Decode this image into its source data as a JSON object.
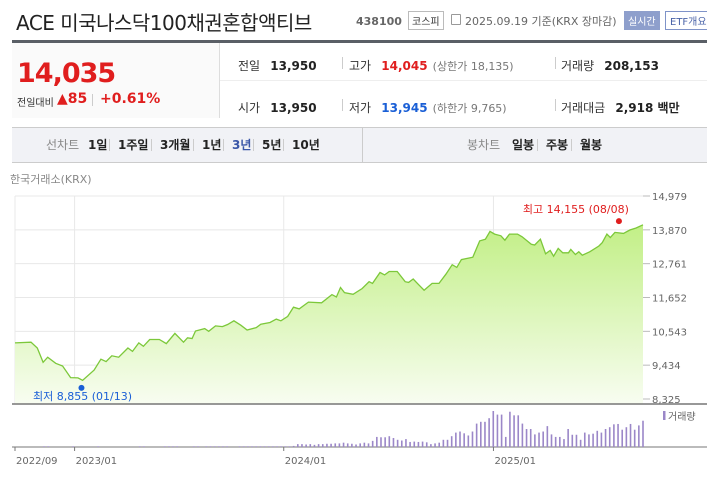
{
  "header": {
    "title": "ACE 미국나스닥100채권혼합액티브",
    "code": "438100",
    "market": "코스피",
    "date_icon": "calendar-clock-icon",
    "date": "2025.09.19 기준(KRX 장마감)",
    "realtime_button": "실시간",
    "etf_button": "ETF개요"
  },
  "quote": {
    "price": "14,035",
    "change_label": "전일대비",
    "change": "85",
    "change_pct": "+0.61%",
    "up_color": "#e01e1e",
    "down_color": "#1a5fd6",
    "stats": [
      {
        "label": "전일",
        "value": "13,950"
      },
      {
        "label": "고가",
        "value": "14,045",
        "sub": "(상한가 18,135)"
      },
      {
        "label": "거래량",
        "value": "208,153"
      },
      {
        "label": "시가",
        "value": "13,950"
      },
      {
        "label": "저가",
        "value": "13,945",
        "sub": "(하한가 9,765)"
      },
      {
        "label": "거래대금",
        "value": "2,918 백만"
      }
    ]
  },
  "periods": {
    "line_label": "선차트",
    "line_items": [
      "1일",
      "1주일",
      "3개월",
      "1년",
      "3년",
      "5년",
      "10년"
    ],
    "selected": "3년",
    "candle_label": "봉차트",
    "candle_items": [
      "일봉",
      "주봉",
      "월봉"
    ]
  },
  "source": "한국거래소(KRX)",
  "chart_data": {
    "type": "area",
    "ylim": [
      8325,
      14979
    ],
    "yticks": [
      "14,979",
      "13,870",
      "12,761",
      "11,652",
      "10,543",
      "9,434",
      "8,325"
    ],
    "xlim": [
      "2022-09-19",
      "2025-09-19"
    ],
    "xticks": [
      {
        "date": "2022-09-19",
        "label": "2022/09"
      },
      {
        "date": "2023-01-01",
        "label": "2023/01"
      },
      {
        "date": "2024-01-01",
        "label": "2024/01"
      },
      {
        "date": "2025-01-01",
        "label": "2025/01"
      }
    ],
    "line_color": "#7cc83a",
    "volume_color": "#9b87c8",
    "volume_legend": "거래량",
    "high": {
      "label": "최고 14,155 (08/08)",
      "date": "2025-08-08",
      "value": 14155
    },
    "low": {
      "label": "최저 8,855 (01/13)",
      "date": "2023-01-13",
      "value": 8855
    },
    "points": [
      [
        "2022-09-19",
        10164
      ],
      [
        "2022-10-17",
        10186
      ],
      [
        "2022-10-28",
        9997
      ],
      [
        "2022-11-07",
        9529
      ],
      [
        "2022-11-15",
        9696
      ],
      [
        "2022-11-29",
        9495
      ],
      [
        "2022-12-11",
        9406
      ],
      [
        "2022-12-25",
        9027
      ],
      [
        "2023-01-07",
        9016
      ],
      [
        "2023-01-15",
        8938
      ],
      [
        "2023-02-04",
        9272
      ],
      [
        "2023-02-16",
        9629
      ],
      [
        "2023-02-25",
        9550
      ],
      [
        "2023-03-07",
        9740
      ],
      [
        "2023-03-19",
        9696
      ],
      [
        "2023-04-04",
        9997
      ],
      [
        "2023-04-12",
        9885
      ],
      [
        "2023-04-23",
        10164
      ],
      [
        "2023-05-01",
        10053
      ],
      [
        "2023-05-12",
        10276
      ],
      [
        "2023-05-29",
        10276
      ],
      [
        "2023-06-10",
        10142
      ],
      [
        "2023-06-25",
        10476
      ],
      [
        "2023-07-10",
        10186
      ],
      [
        "2023-07-17",
        10331
      ],
      [
        "2023-07-25",
        10309
      ],
      [
        "2023-07-31",
        10554
      ],
      [
        "2023-08-16",
        10632
      ],
      [
        "2023-08-23",
        10543
      ],
      [
        "2023-09-04",
        10721
      ],
      [
        "2023-09-16",
        10699
      ],
      [
        "2023-09-25",
        10766
      ],
      [
        "2023-10-06",
        10888
      ],
      [
        "2023-10-18",
        10744
      ],
      [
        "2023-10-29",
        10588
      ],
      [
        "2023-11-14",
        10666
      ],
      [
        "2023-11-22",
        10777
      ],
      [
        "2023-12-08",
        10833
      ],
      [
        "2023-12-19",
        10944
      ],
      [
        "2023-12-27",
        10888
      ],
      [
        "2024-01-08",
        11033
      ],
      [
        "2024-01-18",
        11334
      ],
      [
        "2024-01-28",
        11279
      ],
      [
        "2024-02-13",
        11502
      ],
      [
        "2024-03-07",
        11479
      ],
      [
        "2024-03-25",
        11747
      ],
      [
        "2024-04-02",
        11669
      ],
      [
        "2024-04-09",
        11981
      ],
      [
        "2024-04-16",
        11814
      ],
      [
        "2024-05-01",
        11758
      ],
      [
        "2024-05-17",
        11947
      ],
      [
        "2024-05-29",
        12170
      ],
      [
        "2024-06-04",
        12114
      ],
      [
        "2024-06-17",
        12471
      ],
      [
        "2024-06-25",
        12393
      ],
      [
        "2024-07-03",
        12505
      ],
      [
        "2024-07-17",
        12505
      ],
      [
        "2024-07-31",
        12170
      ],
      [
        "2024-08-06",
        12148
      ],
      [
        "2024-08-14",
        12259
      ],
      [
        "2024-08-23",
        12081
      ],
      [
        "2024-09-02",
        11892
      ],
      [
        "2024-09-16",
        12114
      ],
      [
        "2024-09-28",
        12114
      ],
      [
        "2024-10-10",
        12415
      ],
      [
        "2024-10-21",
        12727
      ],
      [
        "2024-10-29",
        12638
      ],
      [
        "2024-11-06",
        12895
      ],
      [
        "2024-11-26",
        12973
      ],
      [
        "2024-12-08",
        13508
      ],
      [
        "2024-12-18",
        13564
      ],
      [
        "2024-12-26",
        13820
      ],
      [
        "2025-01-03",
        13731
      ],
      [
        "2025-01-14",
        13675
      ],
      [
        "2025-01-21",
        13530
      ],
      [
        "2025-01-29",
        13731
      ],
      [
        "2025-02-12",
        13731
      ],
      [
        "2025-02-20",
        13642
      ],
      [
        "2025-03-08",
        13396
      ],
      [
        "2025-03-14",
        13374
      ],
      [
        "2025-03-24",
        13564
      ],
      [
        "2025-04-02",
        13084
      ],
      [
        "2025-04-10",
        13196
      ],
      [
        "2025-04-16",
        13006
      ],
      [
        "2025-04-24",
        13263
      ],
      [
        "2025-05-02",
        13118
      ],
      [
        "2025-05-12",
        13118
      ],
      [
        "2025-05-16",
        13229
      ],
      [
        "2025-05-24",
        13062
      ],
      [
        "2025-05-30",
        13151
      ],
      [
        "2025-06-05",
        13040
      ],
      [
        "2025-06-18",
        13151
      ],
      [
        "2025-07-04",
        13341
      ],
      [
        "2025-07-10",
        13452
      ],
      [
        "2025-07-18",
        13731
      ],
      [
        "2025-07-24",
        13620
      ],
      [
        "2025-08-01",
        13787
      ],
      [
        "2025-08-16",
        13753
      ],
      [
        "2025-08-27",
        13864
      ],
      [
        "2025-09-07",
        13931
      ],
      [
        "2025-09-19",
        14035
      ]
    ],
    "volume_relative": [
      0,
      0,
      0,
      0,
      0,
      0,
      0,
      2,
      2,
      0,
      0,
      0,
      0,
      0,
      2,
      0,
      0,
      0,
      0,
      0,
      2,
      0,
      0,
      0,
      0,
      0,
      0,
      0,
      0,
      0,
      2,
      2,
      0,
      0,
      0,
      0,
      2,
      2,
      2,
      2,
      0,
      0,
      0,
      2,
      2,
      0,
      2,
      2,
      2,
      2,
      2,
      2,
      0,
      0,
      2,
      2,
      2,
      2,
      2,
      2,
      2,
      2,
      2,
      2,
      2,
      2,
      2,
      3,
      8,
      8,
      7,
      8,
      6,
      8,
      8,
      9,
      9,
      10,
      10,
      12,
      10,
      9,
      7,
      10,
      12,
      10,
      17,
      28,
      27,
      27,
      30,
      25,
      20,
      18,
      22,
      14,
      15,
      14,
      15,
      13,
      8,
      10,
      12,
      20,
      20,
      30,
      40,
      43,
      38,
      32,
      43,
      65,
      70,
      70,
      80,
      100,
      90,
      90,
      28,
      98,
      88,
      88,
      65,
      50,
      50,
      35,
      40,
      43,
      58,
      35,
      28,
      28,
      22,
      50,
      34,
      34,
      20,
      40,
      35,
      37,
      45,
      40,
      50,
      55,
      63,
      64,
      48,
      55,
      64,
      48,
      60,
      73
    ]
  }
}
